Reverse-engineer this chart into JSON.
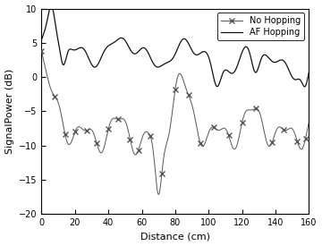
{
  "xlabel": "Distance (cm)",
  "ylabel": "SignalPower (dB)",
  "xlim": [
    0,
    160
  ],
  "ylim": [
    -20,
    10
  ],
  "xticks": [
    0,
    20,
    40,
    60,
    80,
    100,
    120,
    140,
    160
  ],
  "yticks": [
    -20,
    -15,
    -10,
    -5,
    0,
    5,
    10
  ],
  "legend": [
    "No Hopping",
    "AF Hopping"
  ],
  "line_color": "#555555",
  "af_color": "#111111"
}
